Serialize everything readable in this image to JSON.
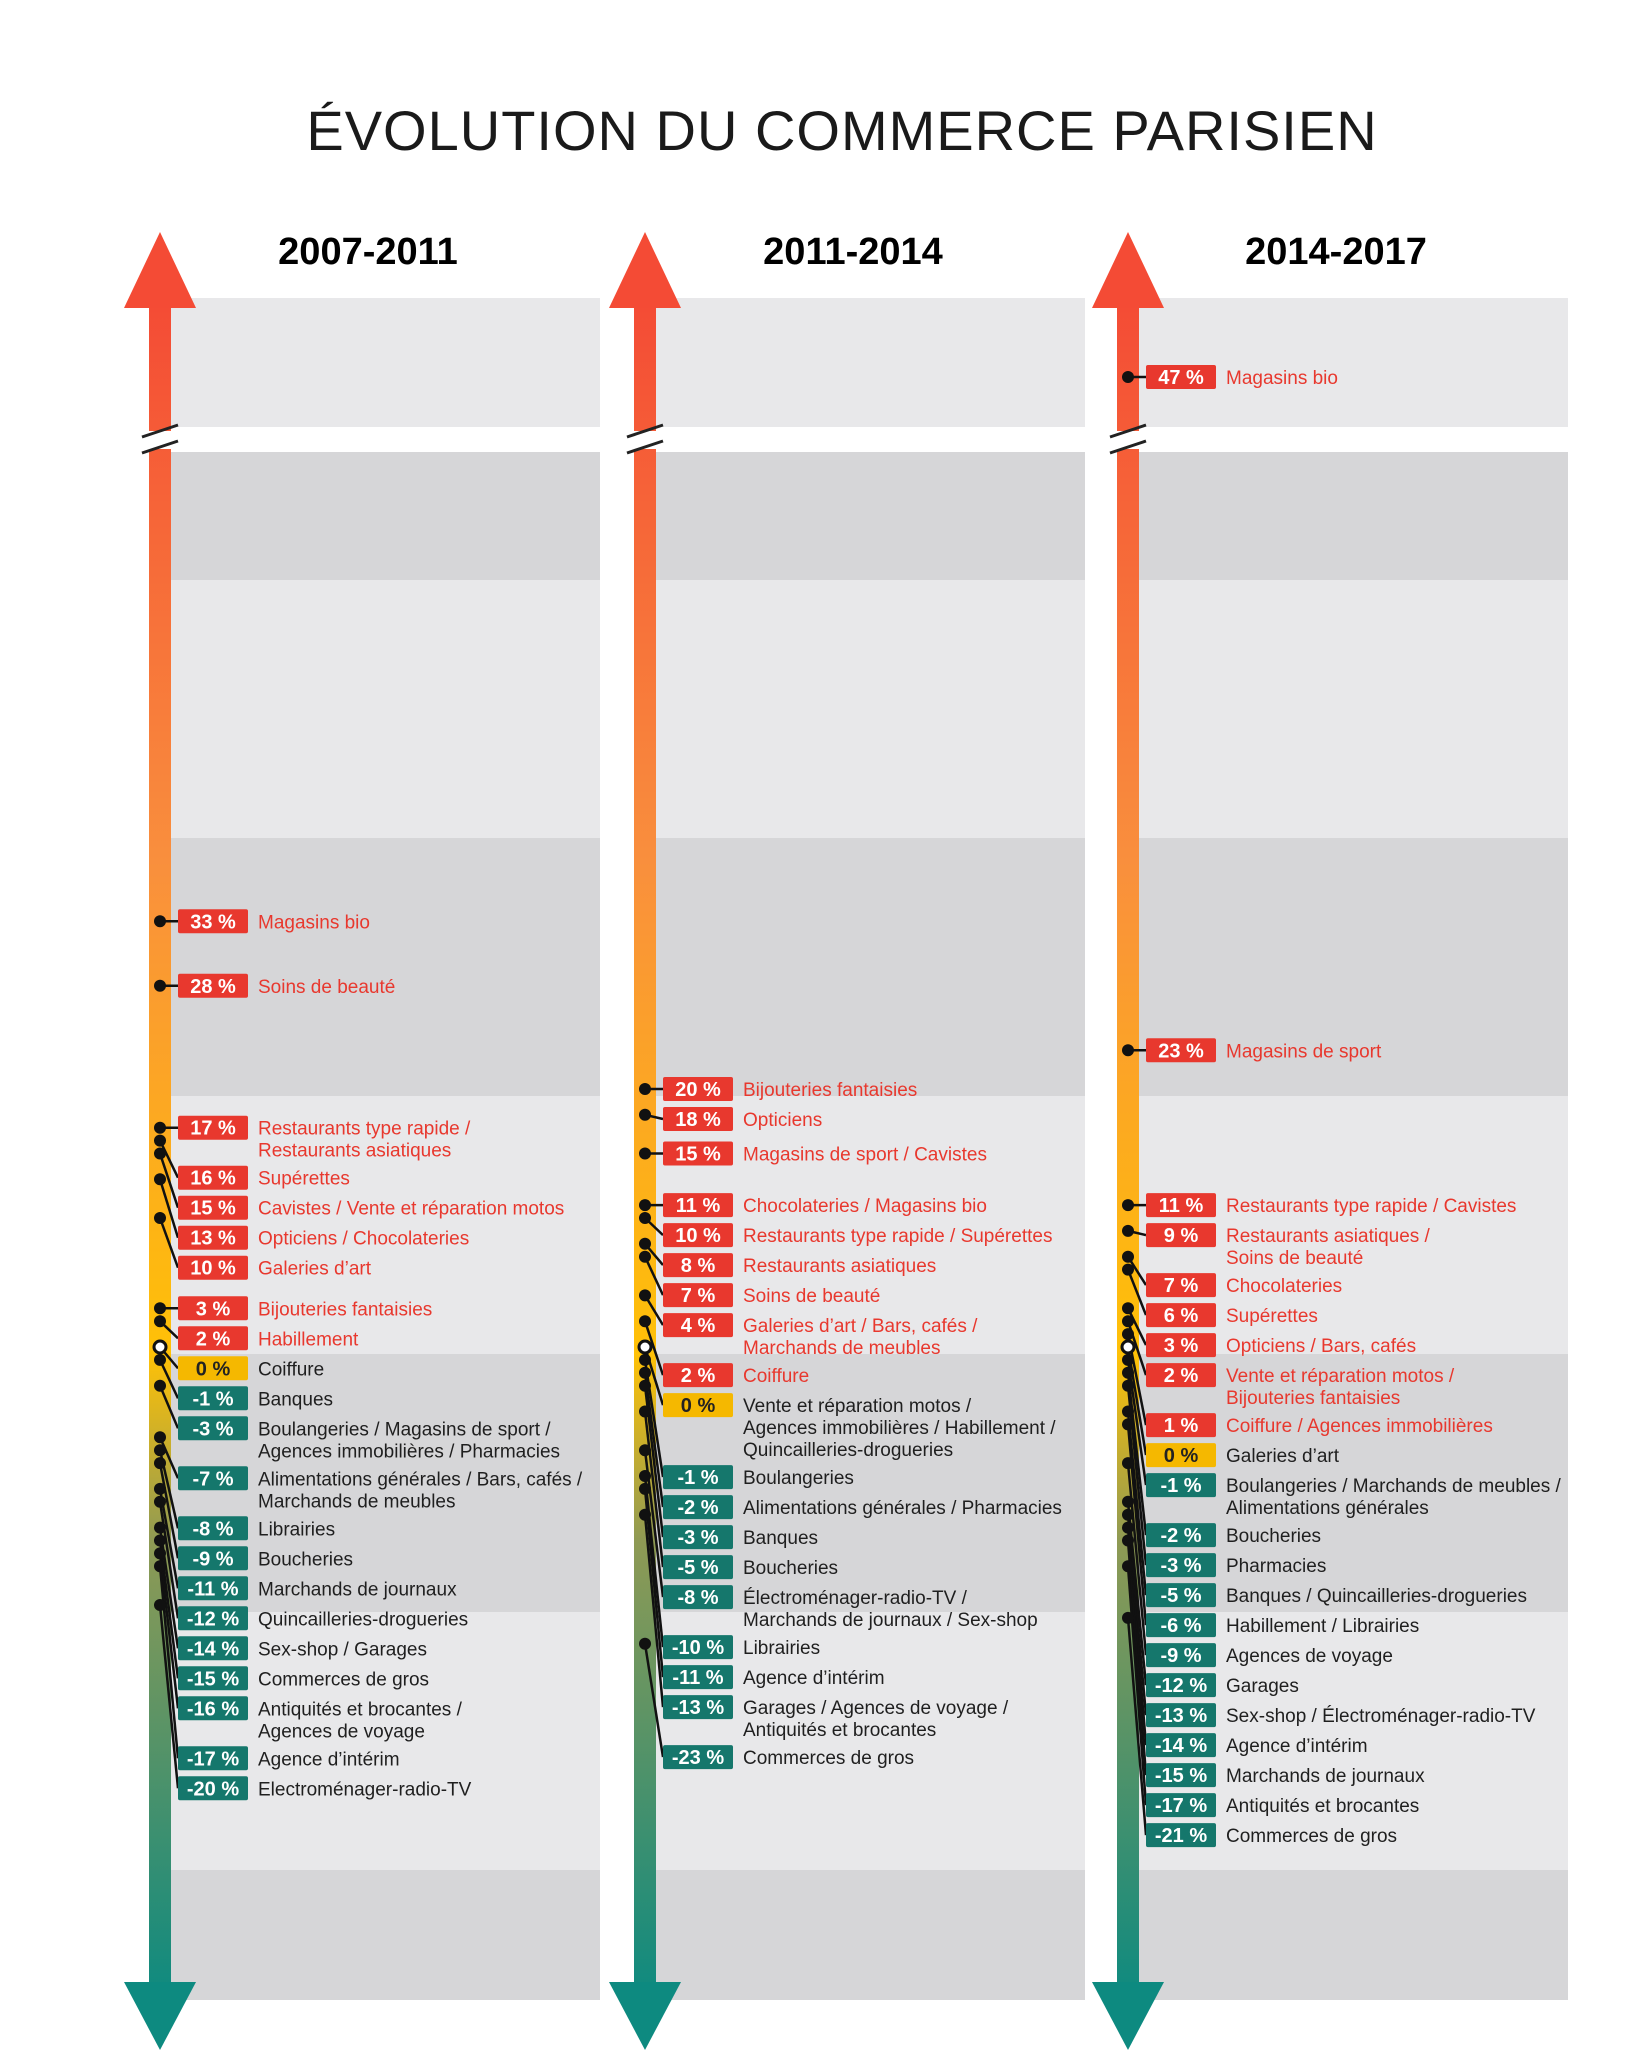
{
  "chart_data": {
    "type": "scatter",
    "title": "ÉVOLUTION DU COMMERCE PARISIEN",
    "unit": "%",
    "colors": {
      "positive": "#e8382e",
      "negative": "#15776c",
      "zero": "#f5b800",
      "positive_text": "#e8382e",
      "other_text": "#1f1f1f"
    },
    "periods": [
      {
        "name": "2007-2011",
        "points": [
          {
            "value": 33,
            "label": "33 %",
            "text": [
              "Magasins bio"
            ]
          },
          {
            "value": 28,
            "label": "28 %",
            "text": [
              "Soins de beauté"
            ]
          },
          {
            "value": 17,
            "label": "17 %",
            "text": [
              "Restaurants type rapide /",
              "Restaurants asiatiques"
            ]
          },
          {
            "value": 16,
            "label": "16 %",
            "text": [
              "Supérettes"
            ]
          },
          {
            "value": 15,
            "label": "15 %",
            "text": [
              "Cavistes / Vente et réparation motos"
            ]
          },
          {
            "value": 13,
            "label": "13 %",
            "text": [
              "Opticiens / Chocolateries"
            ]
          },
          {
            "value": 10,
            "label": "10 %",
            "text": [
              "Galeries d’art"
            ]
          },
          {
            "value": 3,
            "label": "3 %",
            "text": [
              "Bijouteries fantaisies"
            ]
          },
          {
            "value": 2,
            "label": "2 %",
            "text": [
              "Habillement"
            ]
          },
          {
            "value": 0,
            "label": "0 %",
            "text": [
              "Coiffure"
            ]
          },
          {
            "value": -1,
            "label": "-1 %",
            "text": [
              "Banques"
            ]
          },
          {
            "value": -3,
            "label": "-3 %",
            "text": [
              "Boulangeries / Magasins de sport /",
              "Agences immobilières / Pharmacies"
            ]
          },
          {
            "value": -7,
            "label": "-7 %",
            "text": [
              "Alimentations générales / Bars, cafés /",
              "Marchands de meubles"
            ]
          },
          {
            "value": -8,
            "label": "-8 %",
            "text": [
              "Librairies"
            ]
          },
          {
            "value": -9,
            "label": "-9 %",
            "text": [
              "Boucheries"
            ]
          },
          {
            "value": -11,
            "label": "-11 %",
            "text": [
              "Marchands de journaux"
            ]
          },
          {
            "value": -12,
            "label": "-12 %",
            "text": [
              "Quincailleries-drogueries"
            ]
          },
          {
            "value": -14,
            "label": "-14 %",
            "text": [
              "Sex-shop / Garages"
            ]
          },
          {
            "value": -15,
            "label": "-15 %",
            "text": [
              "Commerces de gros"
            ]
          },
          {
            "value": -16,
            "label": "-16 %",
            "text": [
              "Antiquités et brocantes /",
              "Agences de voyage"
            ]
          },
          {
            "value": -17,
            "label": "-17 %",
            "text": [
              "Agence d’intérim"
            ]
          },
          {
            "value": -20,
            "label": "-20 %",
            "text": [
              "Electroménager-radio-TV"
            ]
          }
        ]
      },
      {
        "name": "2011-2014",
        "points": [
          {
            "value": 20,
            "label": "20 %",
            "text": [
              "Bijouteries fantaisies"
            ]
          },
          {
            "value": 18,
            "label": "18 %",
            "text": [
              "Opticiens"
            ]
          },
          {
            "value": 15,
            "label": "15 %",
            "text": [
              "Magasins de sport / Cavistes"
            ]
          },
          {
            "value": 11,
            "label": "11 %",
            "text": [
              "Chocolateries / Magasins bio"
            ]
          },
          {
            "value": 10,
            "label": "10 %",
            "text": [
              "Restaurants type rapide / Supérettes"
            ]
          },
          {
            "value": 8,
            "label": "8 %",
            "text": [
              "Restaurants asiatiques"
            ]
          },
          {
            "value": 7,
            "label": "7 %",
            "text": [
              "Soins de beauté"
            ]
          },
          {
            "value": 4,
            "label": "4 %",
            "text": [
              "Galeries d’art / Bars, cafés /",
              "Marchands de meubles"
            ]
          },
          {
            "value": 2,
            "label": "2 %",
            "text": [
              "Coiffure"
            ]
          },
          {
            "value": 0,
            "label": "0 %",
            "text": [
              "Vente et réparation motos /",
              "Agences immobilières / Habillement /",
              "Quincailleries-drogueries"
            ]
          },
          {
            "value": -1,
            "label": "-1 %",
            "text": [
              "Boulangeries"
            ]
          },
          {
            "value": -2,
            "label": "-2 %",
            "text": [
              "Alimentations générales / Pharmacies"
            ]
          },
          {
            "value": -3,
            "label": "-3 %",
            "text": [
              "Banques"
            ]
          },
          {
            "value": -5,
            "label": "-5 %",
            "text": [
              "Boucheries"
            ]
          },
          {
            "value": -8,
            "label": "-8 %",
            "text": [
              "Électroménager-radio-TV /",
              "Marchands de journaux / Sex-shop"
            ]
          },
          {
            "value": -10,
            "label": "-10 %",
            "text": [
              "Librairies"
            ]
          },
          {
            "value": -11,
            "label": "-11 %",
            "text": [
              "Agence d’intérim"
            ]
          },
          {
            "value": -13,
            "label": "-13 %",
            "text": [
              "Garages / Agences de voyage /",
              "Antiquités et brocantes"
            ]
          },
          {
            "value": -23,
            "label": "-23 %",
            "text": [
              "Commerces de gros"
            ]
          }
        ]
      },
      {
        "name": "2014-2017",
        "points": [
          {
            "value": 47,
            "label": "47 %",
            "text": [
              "Magasins bio"
            ]
          },
          {
            "value": 23,
            "label": "23 %",
            "text": [
              "Magasins de sport"
            ]
          },
          {
            "value": 11,
            "label": "11 %",
            "text": [
              "Restaurants type rapide / Cavistes"
            ]
          },
          {
            "value": 9,
            "label": "9 %",
            "text": [
              "Restaurants asiatiques /",
              "Soins de beauté"
            ]
          },
          {
            "value": 7,
            "label": "7 %",
            "text": [
              "Chocolateries"
            ]
          },
          {
            "value": 6,
            "label": "6 %",
            "text": [
              "Supérettes"
            ]
          },
          {
            "value": 3,
            "label": "3 %",
            "text": [
              "Opticiens / Bars, cafés"
            ]
          },
          {
            "value": 2,
            "label": "2 %",
            "text": [
              "Vente et réparation motos /",
              "Bijouteries fantaisies"
            ]
          },
          {
            "value": 1,
            "label": "1 %",
            "text": [
              "Coiffure / Agences immobilières"
            ]
          },
          {
            "value": 0,
            "label": "0 %",
            "text": [
              "Galeries d’art"
            ]
          },
          {
            "value": -1,
            "label": "-1 %",
            "text": [
              "Boulangeries / Marchands de meubles /",
              "Alimentations générales"
            ]
          },
          {
            "value": -2,
            "label": "-2 %",
            "text": [
              "Boucheries"
            ]
          },
          {
            "value": -3,
            "label": "-3 %",
            "text": [
              "Pharmacies"
            ]
          },
          {
            "value": -5,
            "label": "-5 %",
            "text": [
              "Banques / Quincailleries-drogueries"
            ]
          },
          {
            "value": -6,
            "label": "-6 %",
            "text": [
              "Habillement / Librairies"
            ]
          },
          {
            "value": -9,
            "label": "-9 %",
            "text": [
              "Agences de voyage"
            ]
          },
          {
            "value": -12,
            "label": "-12 %",
            "text": [
              "Garages"
            ]
          },
          {
            "value": -13,
            "label": "-13 %",
            "text": [
              "Sex-shop / Électroménager-radio-TV"
            ]
          },
          {
            "value": -14,
            "label": "-14 %",
            "text": [
              "Agence d’intérim"
            ]
          },
          {
            "value": -15,
            "label": "-15 %",
            "text": [
              "Marchands de journaux"
            ]
          },
          {
            "value": -17,
            "label": "-17 %",
            "text": [
              "Antiquités et brocantes"
            ]
          },
          {
            "value": -21,
            "label": "-21 %",
            "text": [
              "Commerces de gros"
            ]
          }
        ]
      }
    ]
  }
}
